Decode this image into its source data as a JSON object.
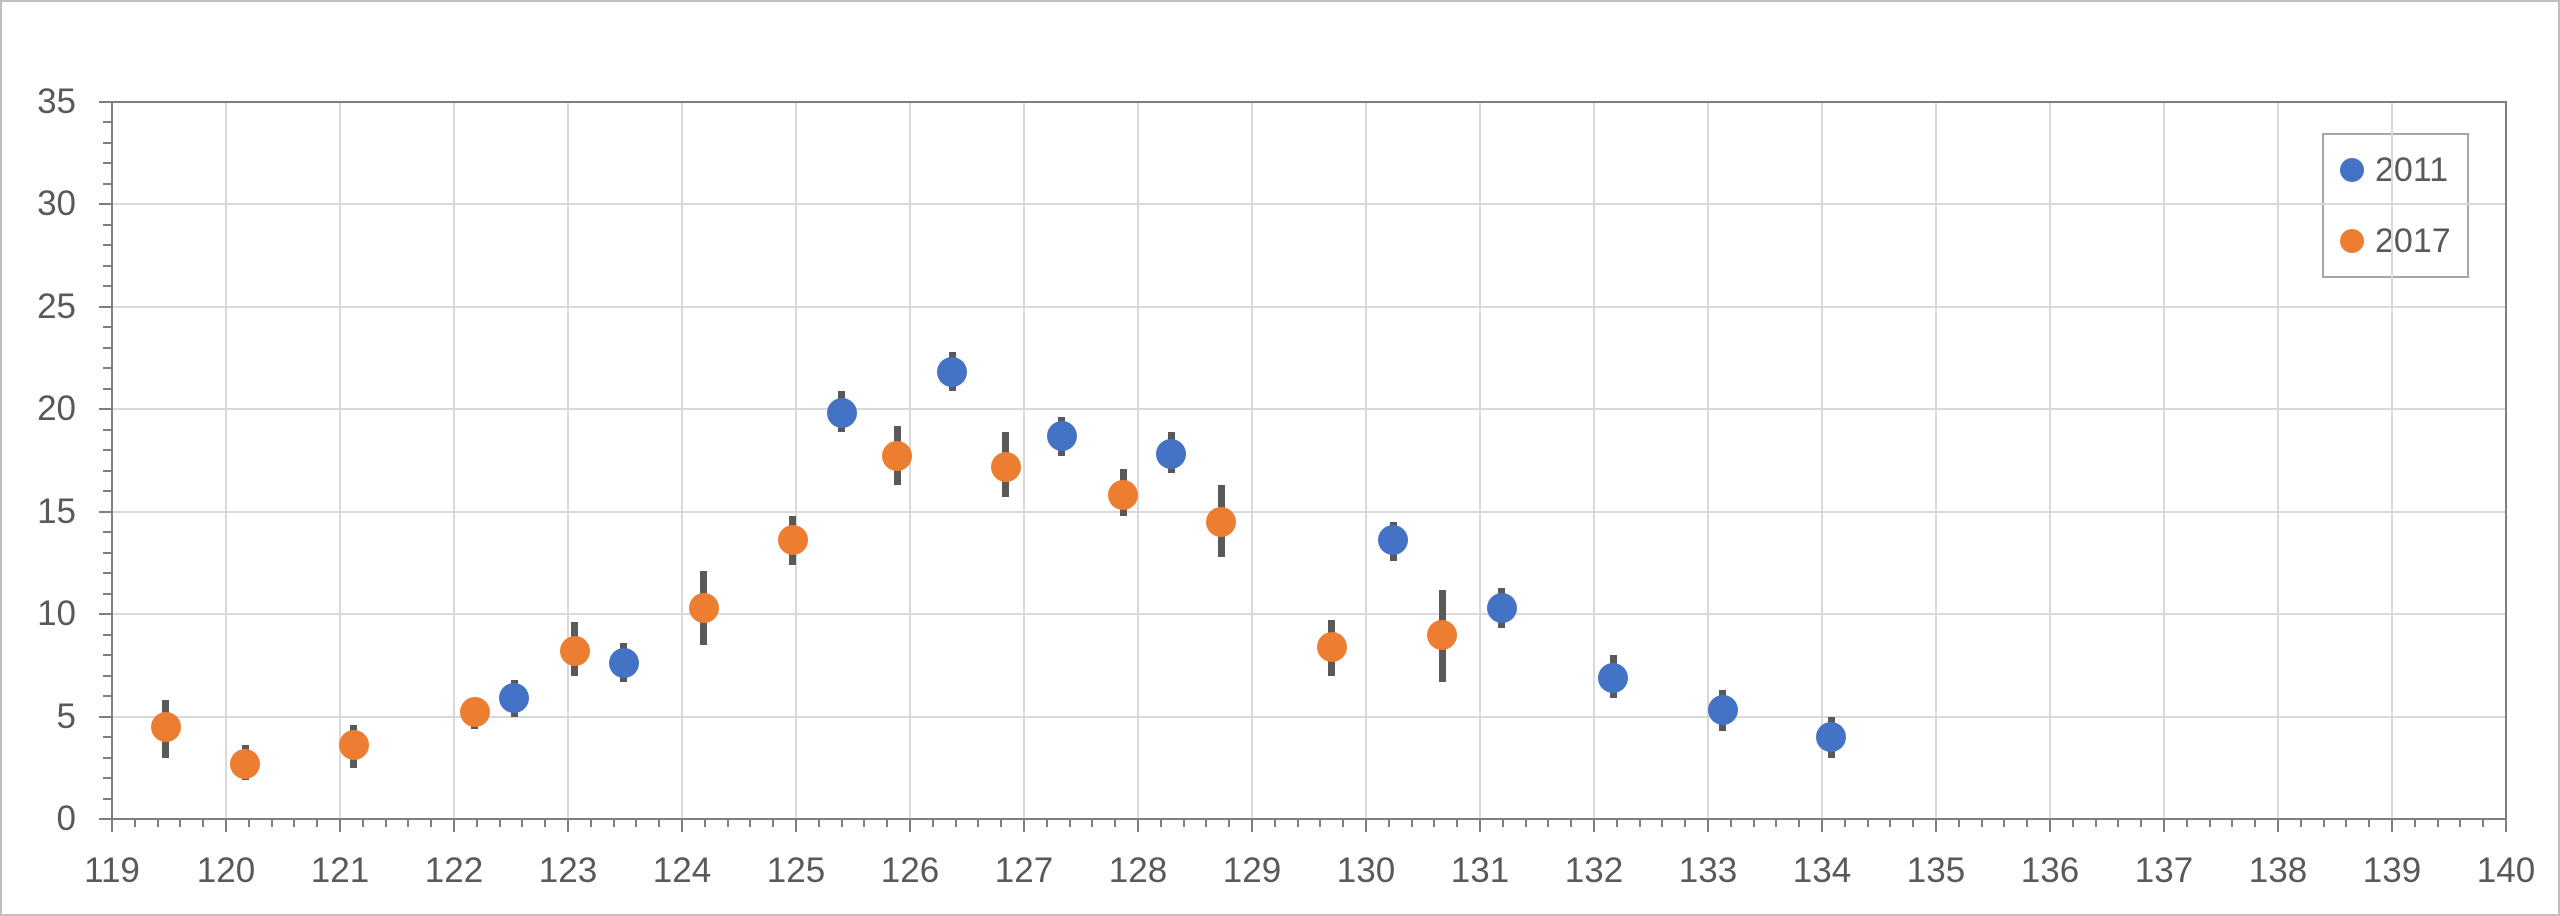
{
  "chart_data": {
    "type": "scatter",
    "title": "",
    "xlabel": "",
    "ylabel": "",
    "xlim": [
      119,
      140
    ],
    "ylim": [
      0,
      35
    ],
    "x_tick_labels": [
      "119",
      "120",
      "121",
      "122",
      "123",
      "124",
      "125",
      "126",
      "127",
      "128",
      "129",
      "130",
      "131",
      "132",
      "133",
      "134",
      "135",
      "136",
      "137",
      "138",
      "139",
      "140"
    ],
    "y_tick_labels": [
      "0",
      "5",
      "10",
      "15",
      "20",
      "25",
      "30",
      "35"
    ],
    "x_major_step": 1,
    "x_minor_step": 0.2,
    "y_major_step": 5,
    "y_minor_step": 1,
    "grid": true,
    "legend_position": "top-right",
    "error_bars": true,
    "series": [
      {
        "name": "2011",
        "color": "#4472c4",
        "points": [
          {
            "x": 122.53,
            "y": 5.9,
            "lo": 5.0,
            "hi": 6.8
          },
          {
            "x": 123.49,
            "y": 7.6,
            "lo": 6.7,
            "hi": 8.6
          },
          {
            "x": 125.4,
            "y": 19.8,
            "lo": 18.9,
            "hi": 20.9
          },
          {
            "x": 126.37,
            "y": 21.8,
            "lo": 20.9,
            "hi": 22.8
          },
          {
            "x": 127.33,
            "y": 18.7,
            "lo": 17.7,
            "hi": 19.6
          },
          {
            "x": 128.29,
            "y": 17.8,
            "lo": 16.9,
            "hi": 18.9
          },
          {
            "x": 130.24,
            "y": 13.6,
            "lo": 12.6,
            "hi": 14.5
          },
          {
            "x": 131.19,
            "y": 10.3,
            "lo": 9.3,
            "hi": 11.3
          },
          {
            "x": 132.17,
            "y": 6.9,
            "lo": 5.9,
            "hi": 8.0
          },
          {
            "x": 133.13,
            "y": 5.3,
            "lo": 4.3,
            "hi": 6.3
          },
          {
            "x": 134.08,
            "y": 4.0,
            "lo": 3.0,
            "hi": 5.0
          }
        ]
      },
      {
        "name": "2017",
        "color": "#ed7d31",
        "points": [
          {
            "x": 119.47,
            "y": 4.5,
            "lo": 3.0,
            "hi": 5.8
          },
          {
            "x": 120.17,
            "y": 2.7,
            "lo": 1.9,
            "hi": 3.6
          },
          {
            "x": 121.12,
            "y": 3.6,
            "lo": 2.5,
            "hi": 4.6
          },
          {
            "x": 122.18,
            "y": 5.2,
            "lo": 4.4,
            "hi": 5.9
          },
          {
            "x": 123.06,
            "y": 8.2,
            "lo": 7.0,
            "hi": 9.6
          },
          {
            "x": 124.19,
            "y": 10.3,
            "lo": 8.5,
            "hi": 12.1
          },
          {
            "x": 124.97,
            "y": 13.6,
            "lo": 12.4,
            "hi": 14.8
          },
          {
            "x": 125.89,
            "y": 17.7,
            "lo": 16.3,
            "hi": 19.2
          },
          {
            "x": 126.84,
            "y": 17.2,
            "lo": 15.7,
            "hi": 18.9
          },
          {
            "x": 127.87,
            "y": 15.8,
            "lo": 14.8,
            "hi": 17.1
          },
          {
            "x": 128.73,
            "y": 14.5,
            "lo": 12.8,
            "hi": 16.3
          },
          {
            "x": 129.7,
            "y": 8.4,
            "lo": 7.0,
            "hi": 9.7
          },
          {
            "x": 130.67,
            "y": 9.0,
            "lo": 6.7,
            "hi": 11.2
          }
        ]
      }
    ]
  },
  "legend": {
    "items": [
      {
        "label": "2011",
        "color": "#4472c4"
      },
      {
        "label": "2017",
        "color": "#ed7d31"
      }
    ]
  },
  "styles": {
    "marker_blue": "#4472c4",
    "marker_orange": "#ed7d31",
    "error_bar": "#595959",
    "gridline": "#d9d9d9",
    "axis_line": "#7f7f7f",
    "tick_label": "#595959",
    "legend_border": "#a6a6a6",
    "outer_border": "#bfbfbf",
    "background": "#ffffff"
  }
}
